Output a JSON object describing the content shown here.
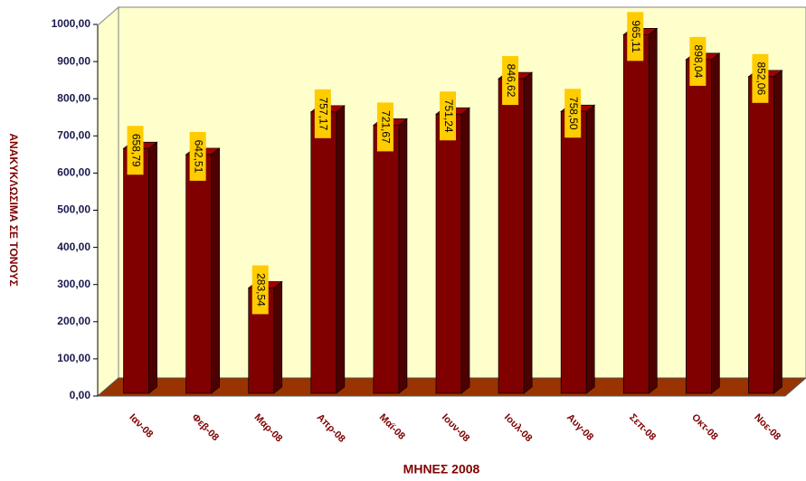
{
  "chart_data": {
    "type": "bar",
    "x_label": "ΜΗΝΕΣ 2008",
    "y_label": "ΑΝΑΚΥΚΛΩΣΙΜΑ ΣΕ ΤΟΝΟΥΣ",
    "categories": [
      "Ιαν-08",
      "Φεβ-08",
      "Μαρ-08",
      "Απρ-08",
      "Μαϊ-08",
      "Ιουν-08",
      "Ιουλ-08",
      "Αυγ-08",
      "Σεπ-08",
      "Οκτ-08",
      "Νοε-08"
    ],
    "values": [
      658.79,
      642.51,
      283.54,
      757.17,
      721.67,
      751.24,
      846.62,
      758.5,
      965.11,
      898.04,
      852.06
    ],
    "value_labels": [
      "658,79",
      "642,51",
      "283,54",
      "757,17",
      "721,67",
      "751,24",
      "846,62",
      "758,50",
      "965,11",
      "898,04",
      "852,06"
    ],
    "color": "#800000",
    "ylim": [
      0,
      1000
    ],
    "yticks": [
      {
        "value": 0,
        "label": "0,00"
      },
      {
        "value": 100,
        "label": "100,00"
      },
      {
        "value": 200,
        "label": "200,00"
      },
      {
        "value": 300,
        "label": "300,00"
      },
      {
        "value": 400,
        "label": "400,00"
      },
      {
        "value": 500,
        "label": "500,00"
      },
      {
        "value": 600,
        "label": "600,00"
      },
      {
        "value": 700,
        "label": "700,00"
      },
      {
        "value": 800,
        "label": "800,00"
      },
      {
        "value": 900,
        "label": "900,00"
      },
      {
        "value": 1000,
        "label": "1000,00"
      }
    ],
    "grid": false
  }
}
